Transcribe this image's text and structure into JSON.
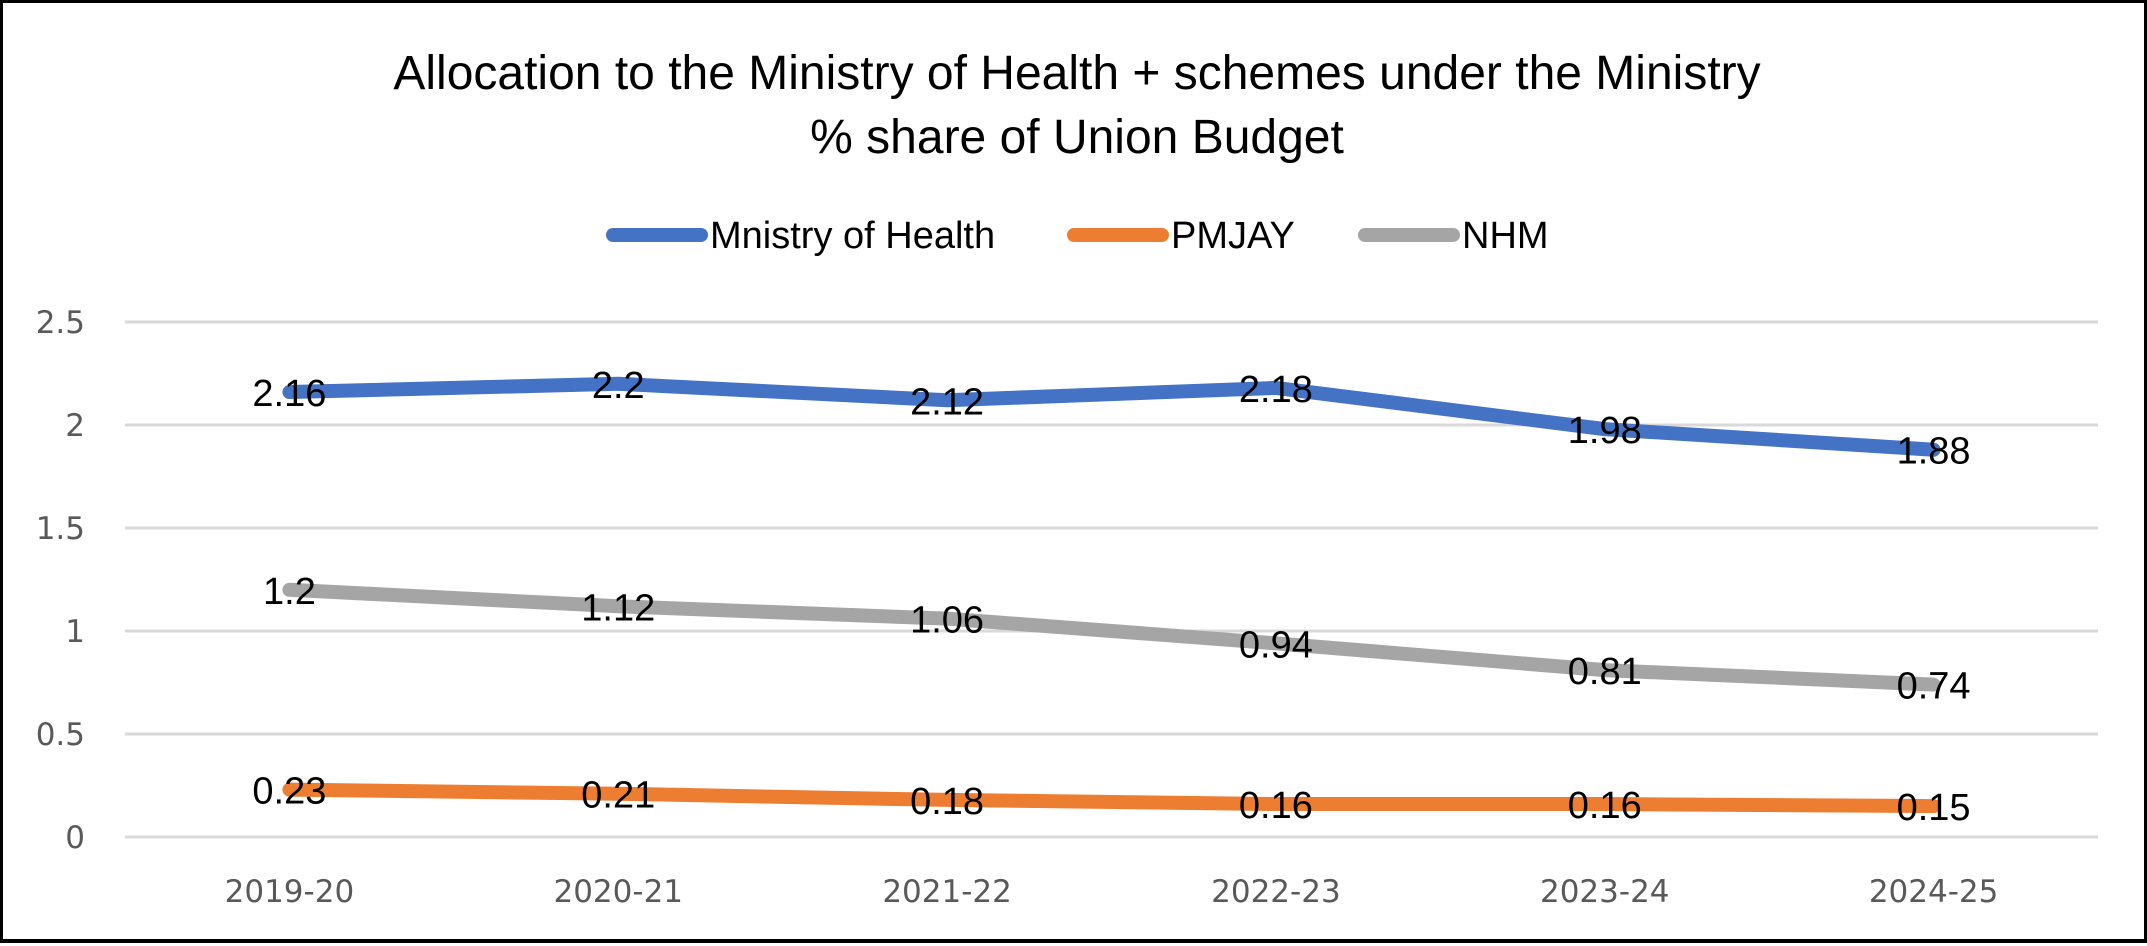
{
  "chart_data": {
    "type": "line",
    "title": "Allocation to the Ministry of Health + schemes under the Ministry",
    "subtitle": "% share of Union Budget",
    "xlabel": "",
    "ylabel": "",
    "categories": [
      "2019-20",
      "2020-21",
      "2021-22",
      "2022-23",
      "2023-24",
      "2024-25"
    ],
    "ylim": [
      0,
      2.5
    ],
    "yticks": [
      0,
      0.5,
      1,
      1.5,
      2,
      2.5
    ],
    "ytick_labels": [
      "0",
      "0.5",
      "1",
      "1.5",
      "2",
      "2.5"
    ],
    "grid": true,
    "legend_position": "top-center",
    "series": [
      {
        "name": "Mnistry of Health",
        "color": "#4472C4",
        "values": [
          2.16,
          2.2,
          2.12,
          2.18,
          1.98,
          1.88
        ],
        "labels": [
          "2.16",
          "2.2",
          "2.12",
          "2.18",
          "1.98",
          "1.88"
        ]
      },
      {
        "name": "PMJAY",
        "color": "#ED7D31",
        "values": [
          0.23,
          0.21,
          0.18,
          0.16,
          0.16,
          0.15
        ],
        "labels": [
          "0.23",
          "0.21",
          "0.18",
          "0.16",
          "0.16",
          "0.15"
        ]
      },
      {
        "name": "NHM",
        "color": "#A5A5A5",
        "values": [
          1.2,
          1.12,
          1.06,
          0.94,
          0.81,
          0.74
        ],
        "labels": [
          "1.2",
          "1.12",
          "1.06",
          "0.94",
          "0.81",
          "0.74"
        ]
      }
    ]
  }
}
